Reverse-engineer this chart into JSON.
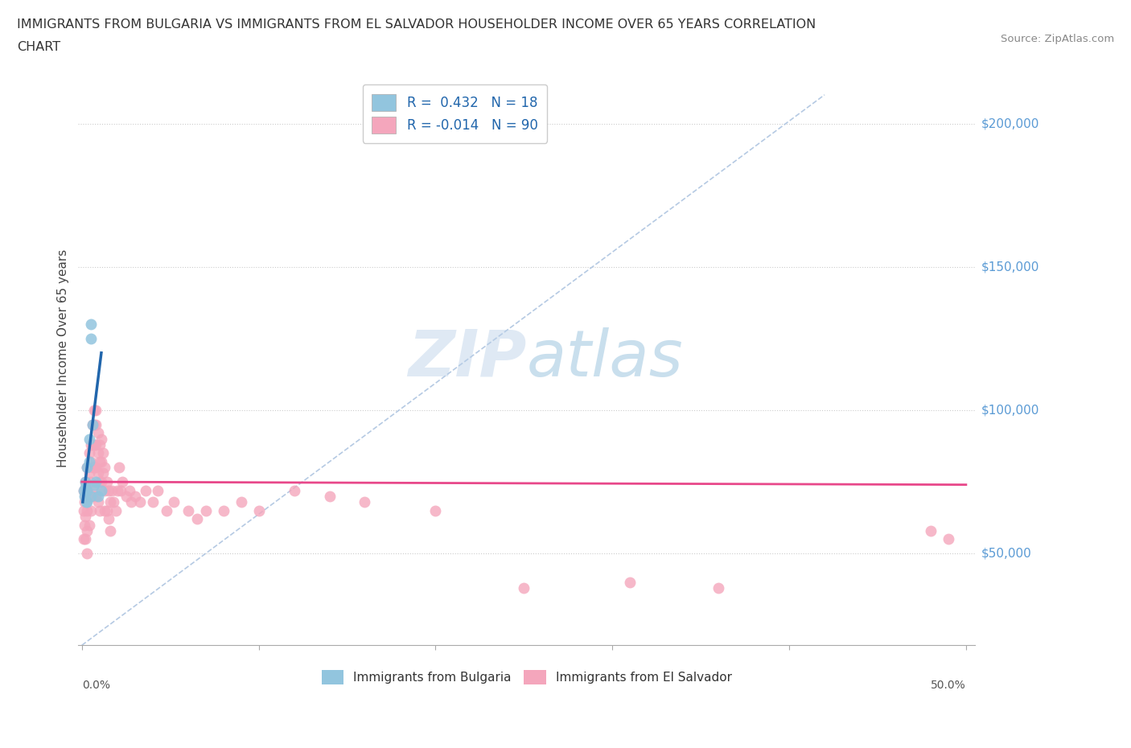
{
  "title_line1": "IMMIGRANTS FROM BULGARIA VS IMMIGRANTS FROM EL SALVADOR HOUSEHOLDER INCOME OVER 65 YEARS CORRELATION",
  "title_line2": "CHART",
  "source": "Source: ZipAtlas.com",
  "ylabel": "Householder Income Over 65 years",
  "ytick_labels": [
    "$50,000",
    "$100,000",
    "$150,000",
    "$200,000"
  ],
  "ytick_values": [
    50000,
    100000,
    150000,
    200000
  ],
  "ylim": [
    18000,
    218000
  ],
  "xlim": [
    -0.002,
    0.505
  ],
  "legend_blue_r": "0.432",
  "legend_blue_n": "18",
  "legend_pink_r": "-0.014",
  "legend_pink_n": "90",
  "blue_scatter_color": "#92c5de",
  "pink_scatter_color": "#f4a6bc",
  "blue_line_color": "#2166ac",
  "pink_line_color": "#e8488a",
  "diag_line_color": "#adc4e0",
  "watermark_color": "#d0e4f0",
  "xtick_positions": [
    0.0,
    0.1,
    0.2,
    0.3,
    0.4,
    0.5
  ],
  "xlabel_left_pos": 0.0,
  "xlabel_right_pos": 0.5,
  "blue_line_x": [
    0.0005,
    0.011
  ],
  "blue_line_y": [
    68000,
    120000
  ],
  "pink_line_x": [
    0.0,
    0.5
  ],
  "pink_line_y": [
    75000,
    74000
  ],
  "diag_line_x": [
    0.0,
    0.42
  ],
  "diag_line_y": [
    18000,
    210000
  ],
  "bulgaria_x": [
    0.001,
    0.0015,
    0.002,
    0.002,
    0.0025,
    0.003,
    0.003,
    0.003,
    0.004,
    0.004,
    0.005,
    0.005,
    0.005,
    0.006,
    0.007,
    0.008,
    0.009,
    0.011
  ],
  "bulgaria_y": [
    72000,
    70000,
    75000,
    73000,
    68000,
    80000,
    72000,
    68000,
    82000,
    90000,
    130000,
    125000,
    70000,
    95000,
    74000,
    75000,
    70000,
    72000
  ],
  "el_salvador_x": [
    0.001,
    0.001,
    0.001,
    0.0015,
    0.0015,
    0.002,
    0.002,
    0.002,
    0.002,
    0.003,
    0.003,
    0.003,
    0.003,
    0.003,
    0.004,
    0.004,
    0.004,
    0.004,
    0.005,
    0.005,
    0.005,
    0.005,
    0.006,
    0.006,
    0.006,
    0.006,
    0.007,
    0.007,
    0.007,
    0.007,
    0.007,
    0.008,
    0.008,
    0.008,
    0.008,
    0.008,
    0.009,
    0.009,
    0.009,
    0.009,
    0.01,
    0.01,
    0.01,
    0.01,
    0.011,
    0.011,
    0.011,
    0.012,
    0.012,
    0.013,
    0.013,
    0.013,
    0.014,
    0.014,
    0.015,
    0.015,
    0.016,
    0.016,
    0.017,
    0.018,
    0.019,
    0.02,
    0.021,
    0.022,
    0.023,
    0.025,
    0.027,
    0.028,
    0.03,
    0.033,
    0.036,
    0.04,
    0.043,
    0.048,
    0.052,
    0.06,
    0.065,
    0.07,
    0.08,
    0.09,
    0.1,
    0.12,
    0.14,
    0.16,
    0.2,
    0.25,
    0.31,
    0.36,
    0.49,
    0.48
  ],
  "el_salvador_y": [
    72000,
    65000,
    55000,
    68000,
    60000,
    75000,
    70000,
    63000,
    55000,
    80000,
    72000,
    65000,
    58000,
    50000,
    85000,
    78000,
    70000,
    60000,
    88000,
    82000,
    75000,
    65000,
    95000,
    88000,
    80000,
    70000,
    100000,
    95000,
    88000,
    80000,
    72000,
    100000,
    95000,
    88000,
    80000,
    70000,
    92000,
    85000,
    78000,
    68000,
    88000,
    82000,
    75000,
    65000,
    90000,
    82000,
    75000,
    85000,
    78000,
    80000,
    72000,
    65000,
    75000,
    65000,
    72000,
    62000,
    68000,
    58000,
    72000,
    68000,
    65000,
    72000,
    80000,
    72000,
    75000,
    70000,
    72000,
    68000,
    70000,
    68000,
    72000,
    68000,
    72000,
    65000,
    68000,
    65000,
    62000,
    65000,
    65000,
    68000,
    65000,
    72000,
    70000,
    68000,
    65000,
    38000,
    40000,
    38000,
    55000,
    58000
  ]
}
